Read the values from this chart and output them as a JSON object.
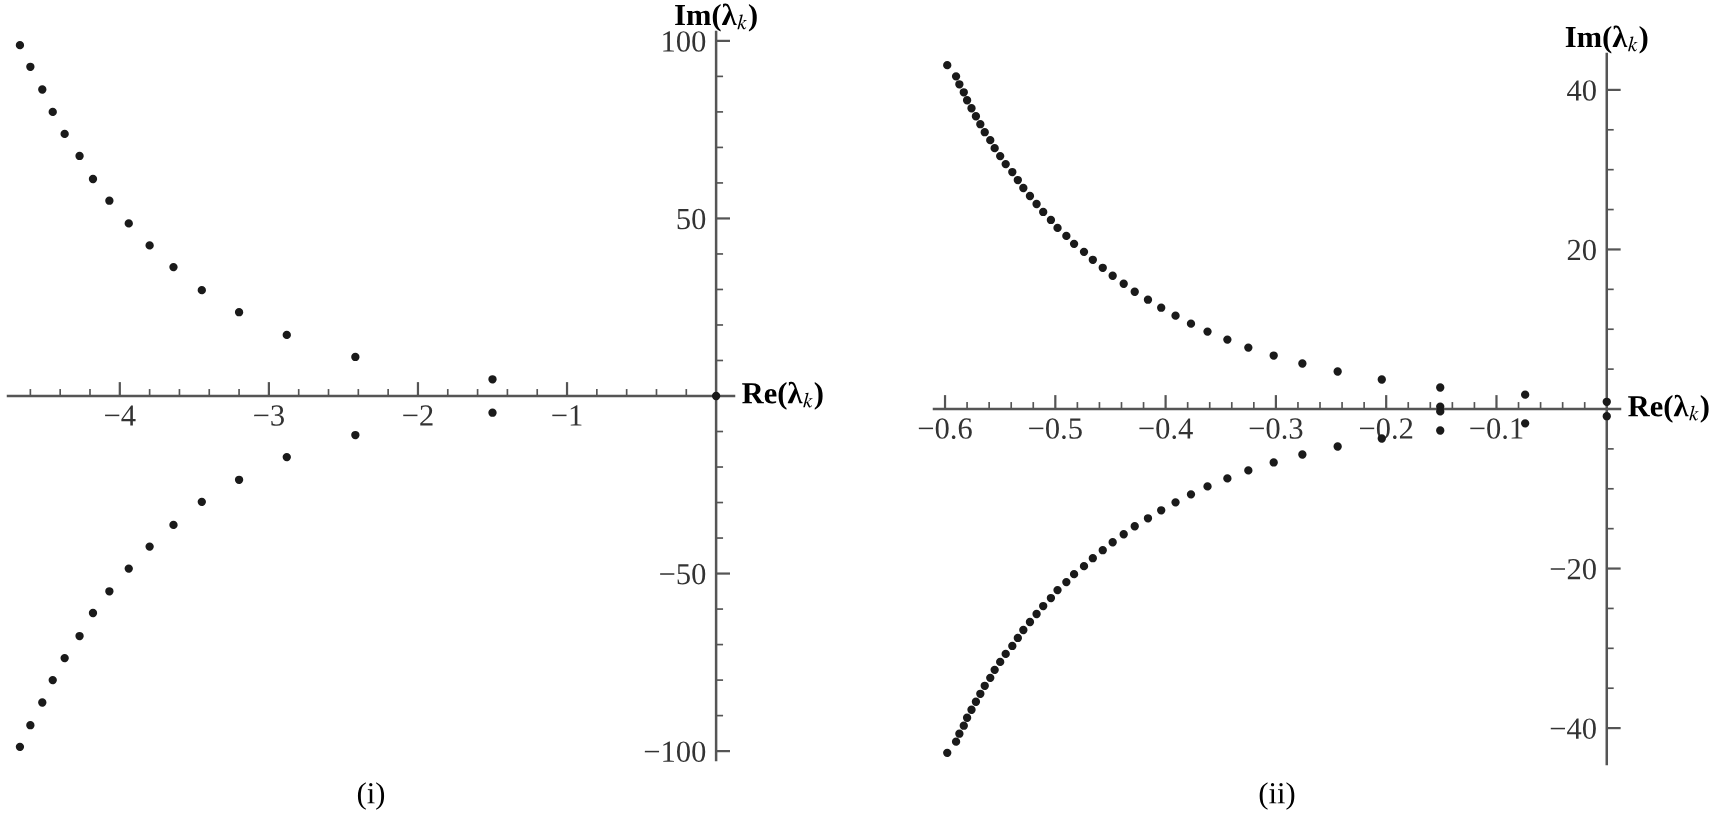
{
  "chart_data": [
    {
      "type": "scatter",
      "xlabel": "Re(λ$_{k}$)",
      "ylabel": "Im(λ$_{k}$)",
      "annotations": [
        "(i)"
      ],
      "marker": "circle",
      "grid": false,
      "xlim": [
        -4.75,
        0.12
      ],
      "ylim": [
        -102.5,
        102.5
      ],
      "xticks": [
        {
          "value": -4,
          "label": "−4"
        },
        {
          "value": -3,
          "label": "−3"
        },
        {
          "value": -2,
          "label": "−2"
        },
        {
          "value": -1,
          "label": "−1"
        },
        {
          "value": -4.6,
          "label": null
        },
        {
          "value": -4.4,
          "label": null
        },
        {
          "value": -4.2,
          "label": null
        },
        {
          "value": -3.8,
          "label": null
        },
        {
          "value": -3.6,
          "label": null
        },
        {
          "value": -3.4,
          "label": null
        },
        {
          "value": -3.2,
          "label": null
        },
        {
          "value": -2.8,
          "label": null
        },
        {
          "value": -2.6,
          "label": null
        },
        {
          "value": -2.4,
          "label": null
        },
        {
          "value": -2.2,
          "label": null
        },
        {
          "value": -1.8,
          "label": null
        },
        {
          "value": -1.6,
          "label": null
        },
        {
          "value": -1.4,
          "label": null
        },
        {
          "value": -1.2,
          "label": null
        },
        {
          "value": -0.8,
          "label": null
        },
        {
          "value": -0.6,
          "label": null
        },
        {
          "value": -0.4,
          "label": null
        },
        {
          "value": -0.2,
          "label": null
        }
      ],
      "yticks": [
        {
          "value": -100,
          "label": "−100"
        },
        {
          "value": -50,
          "label": "−50"
        },
        50,
        100,
        {
          "value": -90,
          "label": null
        },
        {
          "value": -80,
          "label": null
        },
        {
          "value": -70,
          "label": null
        },
        {
          "value": -60,
          "label": null
        },
        {
          "value": -40,
          "label": null
        },
        {
          "value": -30,
          "label": null
        },
        {
          "value": -20,
          "label": null
        },
        {
          "value": -10,
          "label": null
        },
        {
          "value": 10,
          "label": null
        },
        {
          "value": 20,
          "label": null
        },
        {
          "value": 30,
          "label": null
        },
        {
          "value": 40,
          "label": null
        },
        {
          "value": 60,
          "label": null
        },
        {
          "value": 70,
          "label": null
        },
        {
          "value": 80,
          "label": null
        },
        {
          "value": 90,
          "label": null
        }
      ],
      "series": [
        {
          "color": "#1a1a1a",
          "x": [
            -4.67,
            -4.6,
            -4.52,
            -4.45,
            -4.37,
            -4.27,
            -4.18,
            -4.07,
            -3.94,
            -3.8,
            -3.64,
            -3.45,
            -3.2,
            -2.88,
            -2.42,
            -1.5,
            0
          ],
          "values": [
            98.8,
            92.7,
            86.3,
            80.0,
            73.8,
            67.6,
            61.1,
            55.0,
            48.6,
            42.4,
            36.3,
            29.8,
            23.6,
            17.2,
            11.0,
            4.7,
            0
          ]
        },
        {
          "color": "#1a1a1a",
          "x": [
            -4.67,
            -4.6,
            -4.52,
            -4.45,
            -4.37,
            -4.27,
            -4.18,
            -4.07,
            -3.94,
            -3.8,
            -3.64,
            -3.45,
            -3.2,
            -2.88,
            -2.42,
            -1.5
          ],
          "values": [
            -98.8,
            -92.7,
            -86.3,
            -80.0,
            -73.8,
            -67.6,
            -61.1,
            -55.0,
            -48.6,
            -42.4,
            -36.3,
            -29.8,
            -23.6,
            -17.2,
            -11.0,
            -4.7
          ]
        }
      ]
    },
    {
      "type": "scatter",
      "xlabel": "Re(λ$_{k}$)",
      "ylabel": "Im(λ$_{k}$)",
      "annotations": [
        "(ii)"
      ],
      "marker": "circle",
      "grid": false,
      "xlim": [
        -0.61,
        0.012
      ],
      "ylim": [
        -44.5,
        44.5
      ],
      "xticks": [
        {
          "value": -0.6,
          "label": "−0.6"
        },
        {
          "value": -0.5,
          "label": "−0.5"
        },
        {
          "value": -0.4,
          "label": "−0.4"
        },
        {
          "value": -0.3,
          "label": "−0.3"
        },
        {
          "value": -0.2,
          "label": "−0.2"
        },
        {
          "value": -0.1,
          "label": "−0.1"
        },
        {
          "value": -0.58,
          "label": null
        },
        {
          "value": -0.56,
          "label": null
        },
        {
          "value": -0.54,
          "label": null
        },
        {
          "value": -0.52,
          "label": null
        },
        {
          "value": -0.48,
          "label": null
        },
        {
          "value": -0.46,
          "label": null
        },
        {
          "value": -0.44,
          "label": null
        },
        {
          "value": -0.42,
          "label": null
        },
        {
          "value": -0.38,
          "label": null
        },
        {
          "value": -0.36,
          "label": null
        },
        {
          "value": -0.34,
          "label": null
        },
        {
          "value": -0.32,
          "label": null
        },
        {
          "value": -0.28,
          "label": null
        },
        {
          "value": -0.26,
          "label": null
        },
        {
          "value": -0.24,
          "label": null
        },
        {
          "value": -0.22,
          "label": null
        },
        {
          "value": -0.18,
          "label": null
        },
        {
          "value": -0.16,
          "label": null
        },
        {
          "value": -0.14,
          "label": null
        },
        {
          "value": -0.12,
          "label": null
        },
        {
          "value": -0.08,
          "label": null
        },
        {
          "value": -0.06,
          "label": null
        },
        {
          "value": -0.04,
          "label": null
        },
        {
          "value": -0.02,
          "label": null
        }
      ],
      "yticks": [
        {
          "value": -40,
          "label": "−40"
        },
        {
          "value": -20,
          "label": "−20"
        },
        20,
        40,
        {
          "value": -35,
          "label": null
        },
        {
          "value": -30,
          "label": null
        },
        {
          "value": -25,
          "label": null
        },
        {
          "value": -15,
          "label": null
        },
        {
          "value": -10,
          "label": null
        },
        {
          "value": -5,
          "label": null
        },
        {
          "value": 5,
          "label": null
        },
        {
          "value": 10,
          "label": null
        },
        {
          "value": 15,
          "label": null
        },
        {
          "value": 25,
          "label": null
        },
        {
          "value": 30,
          "label": null
        },
        {
          "value": 35,
          "label": null
        }
      ],
      "series": [
        {
          "color": "#1a1a1a",
          "x": [
            -0.598,
            -0.59,
            -0.587,
            -0.583,
            -0.58,
            -0.576,
            -0.572,
            -0.568,
            -0.564,
            -0.559,
            -0.555,
            -0.55,
            -0.545,
            -0.539,
            -0.534,
            -0.529,
            -0.523,
            -0.517,
            -0.511,
            -0.504,
            -0.498,
            -0.49,
            -0.483,
            -0.474,
            -0.466,
            -0.457,
            -0.448,
            -0.438,
            -0.428,
            -0.416,
            -0.404,
            -0.391,
            -0.377,
            -0.362,
            -0.344,
            -0.325,
            -0.302,
            -0.276,
            -0.244,
            -0.204,
            -0.151,
            -0.074,
            0,
            -0.151
          ],
          "values": [
            43.1,
            41.7,
            40.7,
            39.7,
            38.7,
            37.7,
            36.7,
            35.7,
            34.7,
            33.7,
            32.7,
            31.7,
            30.7,
            29.7,
            28.7,
            27.7,
            26.7,
            25.7,
            24.7,
            23.7,
            22.7,
            21.7,
            20.7,
            19.7,
            18.7,
            17.7,
            16.7,
            15.7,
            14.7,
            13.7,
            12.7,
            11.7,
            10.7,
            9.7,
            8.7,
            7.7,
            6.7,
            5.7,
            4.7,
            3.7,
            2.7,
            1.8,
            0.9,
            0.3
          ]
        },
        {
          "color": "#1a1a1a",
          "x": [
            -0.598,
            -0.59,
            -0.587,
            -0.583,
            -0.58,
            -0.576,
            -0.572,
            -0.568,
            -0.564,
            -0.559,
            -0.555,
            -0.55,
            -0.545,
            -0.539,
            -0.534,
            -0.529,
            -0.523,
            -0.517,
            -0.511,
            -0.504,
            -0.498,
            -0.49,
            -0.483,
            -0.474,
            -0.466,
            -0.457,
            -0.448,
            -0.438,
            -0.428,
            -0.416,
            -0.404,
            -0.391,
            -0.377,
            -0.362,
            -0.344,
            -0.325,
            -0.302,
            -0.276,
            -0.244,
            -0.204,
            -0.151,
            -0.074,
            0,
            -0.151
          ],
          "values": [
            -43.1,
            -41.7,
            -40.7,
            -39.7,
            -38.7,
            -37.7,
            -36.7,
            -35.7,
            -34.7,
            -33.7,
            -32.7,
            -31.7,
            -30.7,
            -29.7,
            -28.7,
            -27.7,
            -26.7,
            -25.7,
            -24.7,
            -23.7,
            -22.7,
            -21.7,
            -20.7,
            -19.7,
            -18.7,
            -17.7,
            -16.7,
            -15.7,
            -14.7,
            -13.7,
            -12.7,
            -11.7,
            -10.7,
            -9.7,
            -8.7,
            -7.7,
            -6.7,
            -5.7,
            -4.7,
            -3.7,
            -2.7,
            -1.8,
            -0.9,
            -0.3
          ]
        }
      ]
    }
  ]
}
